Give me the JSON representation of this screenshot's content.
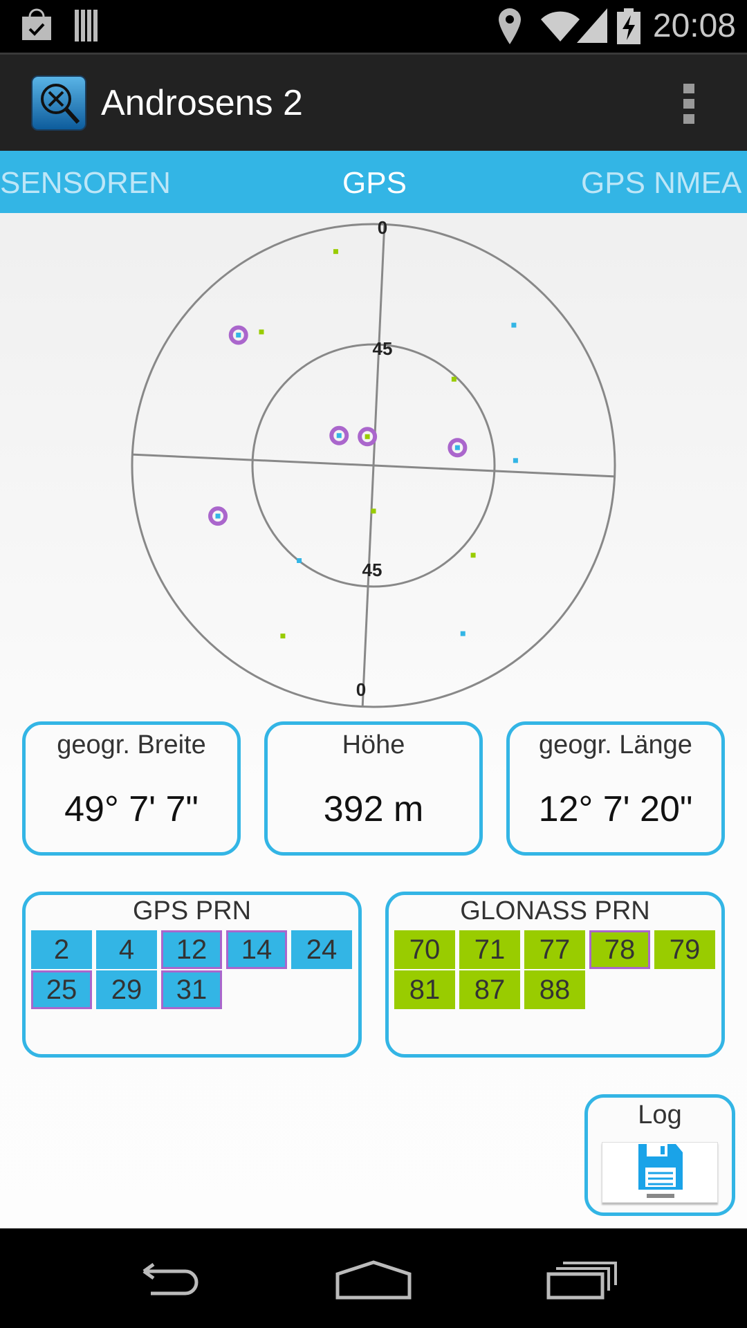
{
  "status_bar": {
    "time": "20:08",
    "icons": [
      "shopping-bag-check-icon",
      "barcode-icon",
      "location-pin-icon",
      "wifi-icon",
      "signal-icon",
      "battery-charging-icon"
    ]
  },
  "action_bar": {
    "title": "Androsens 2",
    "overflow_icon": "overflow-menu-icon"
  },
  "tabs": [
    {
      "label": "SENSOREN"
    },
    {
      "label": "GPS",
      "active": true
    },
    {
      "label": "GPS NMEA"
    }
  ],
  "sky_plot": {
    "ring_labels": {
      "outer_top": "0",
      "inner_top": "45",
      "inner_bottom": "45",
      "outer_bottom": "0"
    },
    "colors": {
      "gps": "#33b5e5",
      "glonass": "#99cc00",
      "used_ring": "#aa66cc",
      "grid": "#888888"
    },
    "satellites": [
      {
        "system": "gps",
        "az": 314,
        "el": 20,
        "used": true
      },
      {
        "system": "gps",
        "az": 311,
        "el": 73,
        "used": true
      },
      {
        "system": "glonass",
        "az": 348,
        "el": 79,
        "used": true
      },
      {
        "system": "gps",
        "az": 78,
        "el": 58,
        "used": true
      },
      {
        "system": "gps",
        "az": 252,
        "el": 29,
        "used": true
      },
      {
        "system": "gps",
        "az": 45,
        "el": 16,
        "used": false
      },
      {
        "system": "gps",
        "az": 88,
        "el": 37,
        "used": false
      },
      {
        "system": "gps",
        "az": 218,
        "el": 45,
        "used": false
      },
      {
        "system": "gps",
        "az": 152,
        "el": 19,
        "used": false
      },
      {
        "system": "glonass",
        "az": 350,
        "el": 9,
        "used": false
      },
      {
        "system": "glonass",
        "az": 320,
        "el": 25,
        "used": false
      },
      {
        "system": "glonass",
        "az": 43,
        "el": 46,
        "used": false
      },
      {
        "system": "glonass",
        "az": 180,
        "el": 73,
        "used": false
      },
      {
        "system": "glonass",
        "az": 132,
        "el": 40,
        "used": false
      },
      {
        "system": "glonass",
        "az": 208,
        "el": 18,
        "used": false
      }
    ]
  },
  "info": [
    {
      "label": "geogr. Breite",
      "value": "49° 7' 7\""
    },
    {
      "label": "Höhe",
      "value": "392 m"
    },
    {
      "label": "geogr. Länge",
      "value": "12° 7' 20\""
    }
  ],
  "gps_prn": {
    "title": "GPS PRN",
    "items": [
      {
        "prn": "2",
        "used": false
      },
      {
        "prn": "4",
        "used": false
      },
      {
        "prn": "12",
        "used": true
      },
      {
        "prn": "14",
        "used": true
      },
      {
        "prn": "24",
        "used": false
      },
      {
        "prn": "25",
        "used": true
      },
      {
        "prn": "29",
        "used": false
      },
      {
        "prn": "31",
        "used": true
      }
    ]
  },
  "glonass_prn": {
    "title": "GLONASS PRN",
    "items": [
      {
        "prn": "70",
        "used": false
      },
      {
        "prn": "71",
        "used": false
      },
      {
        "prn": "77",
        "used": false
      },
      {
        "prn": "78",
        "used": true
      },
      {
        "prn": "79",
        "used": false
      },
      {
        "prn": "81",
        "used": false
      },
      {
        "prn": "87",
        "used": false
      },
      {
        "prn": "88",
        "used": false
      }
    ]
  },
  "log": {
    "label": "Log",
    "icon": "floppy-disk-save-icon"
  },
  "nav_bar": {
    "icons": [
      "back-icon",
      "home-icon",
      "recent-apps-icon"
    ]
  }
}
